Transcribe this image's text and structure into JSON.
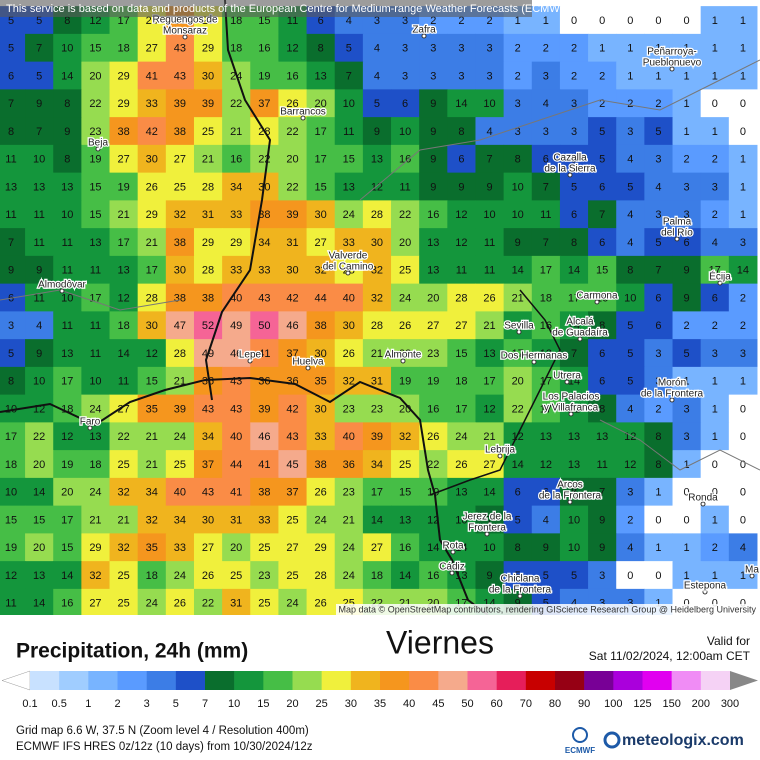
{
  "header": {
    "notice": "This service is based on data and products of the European Centre for Medium-range Weather Forecasts (ECMWF)"
  },
  "map": {
    "grid": [
      [
        5,
        5,
        8,
        12,
        17,
        25,
        38,
        29,
        18,
        15,
        11,
        6,
        4,
        3,
        3,
        2,
        2,
        2,
        1,
        1,
        0,
        0,
        0,
        0,
        0,
        1,
        1
      ],
      [
        5,
        7,
        10,
        15,
        18,
        27,
        43,
        29,
        18,
        16,
        12,
        8,
        5,
        4,
        3,
        3,
        3,
        3,
        2,
        2,
        2,
        1,
        1,
        1,
        1,
        1,
        1
      ],
      [
        6,
        5,
        14,
        20,
        29,
        41,
        43,
        30,
        24,
        19,
        16,
        13,
        7,
        4,
        3,
        3,
        3,
        3,
        2,
        3,
        2,
        2,
        1,
        1,
        1,
        1,
        1
      ],
      [
        7,
        9,
        8,
        22,
        29,
        33,
        39,
        39,
        22,
        37,
        26,
        20,
        10,
        5,
        6,
        9,
        14,
        10,
        3,
        4,
        3,
        2,
        2,
        2,
        1,
        0,
        0
      ],
      [
        8,
        7,
        9,
        23,
        38,
        42,
        38,
        25,
        21,
        28,
        22,
        17,
        11,
        9,
        10,
        9,
        8,
        4,
        3,
        3,
        3,
        5,
        3,
        5,
        1,
        1,
        0
      ],
      [
        11,
        10,
        8,
        19,
        27,
        30,
        27,
        21,
        16,
        22,
        20,
        17,
        15,
        13,
        16,
        9,
        6,
        7,
        8,
        6,
        5,
        5,
        4,
        3,
        2,
        2,
        1
      ],
      [
        13,
        13,
        13,
        15,
        19,
        26,
        25,
        28,
        34,
        30,
        22,
        15,
        13,
        12,
        11,
        9,
        9,
        9,
        10,
        7,
        5,
        6,
        5,
        4,
        3,
        3,
        1
      ],
      [
        11,
        11,
        10,
        15,
        21,
        29,
        32,
        31,
        33,
        38,
        39,
        30,
        24,
        28,
        22,
        16,
        12,
        10,
        10,
        11,
        6,
        7,
        4,
        3,
        3,
        2,
        1
      ],
      [
        7,
        11,
        11,
        13,
        17,
        21,
        38,
        29,
        29,
        34,
        31,
        27,
        33,
        30,
        20,
        13,
        12,
        11,
        9,
        7,
        8,
        6,
        4,
        5,
        6,
        4,
        3
      ],
      [
        9,
        9,
        11,
        11,
        13,
        17,
        30,
        28,
        33,
        33,
        30,
        32,
        28,
        32,
        25,
        13,
        11,
        11,
        14,
        17,
        14,
        15,
        8,
        7,
        9,
        17,
        14
      ],
      [
        6,
        11,
        10,
        17,
        12,
        28,
        38,
        38,
        40,
        43,
        42,
        44,
        40,
        32,
        24,
        20,
        28,
        26,
        21,
        18,
        17,
        16,
        10,
        6,
        9,
        6,
        2
      ],
      [
        3,
        4,
        11,
        11,
        18,
        30,
        47,
        52,
        49,
        50,
        46,
        38,
        30,
        28,
        26,
        27,
        27,
        21,
        12,
        16,
        14,
        8,
        5,
        6,
        2,
        2,
        2
      ],
      [
        5,
        9,
        13,
        11,
        14,
        12,
        28,
        49,
        46,
        41,
        37,
        30,
        26,
        21,
        23,
        23,
        15,
        13,
        17,
        12,
        7,
        6,
        5,
        3,
        5,
        3,
        3
      ],
      [
        8,
        10,
        17,
        10,
        11,
        15,
        21,
        36,
        43,
        36,
        36,
        35,
        32,
        31,
        19,
        19,
        18,
        17,
        20,
        17,
        14,
        6,
        5,
        3,
        1,
        1,
        1
      ],
      [
        10,
        12,
        18,
        24,
        27,
        35,
        39,
        43,
        43,
        39,
        42,
        30,
        23,
        23,
        20,
        16,
        17,
        12,
        22,
        17,
        12,
        8,
        4,
        2,
        3,
        1,
        0
      ],
      [
        17,
        22,
        12,
        13,
        22,
        21,
        24,
        34,
        40,
        46,
        43,
        33,
        40,
        39,
        32,
        26,
        24,
        21,
        12,
        13,
        13,
        13,
        12,
        8,
        3,
        1,
        0
      ],
      [
        18,
        20,
        19,
        18,
        25,
        21,
        25,
        37,
        44,
        41,
        45,
        38,
        36,
        34,
        25,
        22,
        26,
        27,
        14,
        12,
        13,
        11,
        12,
        8,
        1,
        0,
        0
      ],
      [
        10,
        14,
        20,
        24,
        32,
        34,
        40,
        43,
        41,
        38,
        37,
        26,
        23,
        17,
        15,
        19,
        13,
        14,
        6,
        6,
        8,
        7,
        3,
        1,
        0,
        0,
        0
      ],
      [
        15,
        15,
        17,
        21,
        21,
        32,
        34,
        30,
        31,
        33,
        25,
        24,
        21,
        14,
        13,
        12,
        10,
        7,
        5,
        4,
        10,
        9,
        2,
        0,
        0,
        1,
        0
      ],
      [
        19,
        20,
        15,
        29,
        32,
        35,
        33,
        27,
        20,
        25,
        27,
        29,
        24,
        27,
        16,
        14,
        14,
        10,
        8,
        9,
        10,
        9,
        4,
        1,
        1,
        2,
        4
      ],
      [
        12,
        13,
        14,
        32,
        25,
        18,
        24,
        26,
        25,
        23,
        25,
        28,
        24,
        18,
        14,
        16,
        13,
        9,
        5,
        5,
        5,
        3,
        0,
        0,
        1,
        1,
        1
      ],
      [
        11,
        14,
        16,
        27,
        25,
        24,
        26,
        22,
        31,
        25,
        24,
        26,
        25,
        22,
        21,
        20,
        17,
        14,
        9,
        5,
        4,
        3,
        3,
        1,
        0,
        0,
        0
      ]
    ],
    "cities": [
      [
        "Reguengos de",
        "Monsaraz"
      ],
      [
        "Zafra"
      ],
      [
        "Peñarroya-",
        "Pueblonuevo"
      ],
      [
        "Barrancos"
      ],
      [
        "Beja"
      ],
      [
        "Cazalla",
        "de la Sierra"
      ],
      [
        "Palma",
        "del Río"
      ],
      [
        "Écija"
      ],
      [
        "Valverde",
        "del Camino"
      ],
      [
        "Almodôvar"
      ],
      [
        "Carmona"
      ],
      [
        "Sevilla"
      ],
      [
        "Alcalá",
        "de Guadaíra"
      ],
      [
        "Dos Hermanas"
      ],
      [
        "Lepe"
      ],
      [
        "Huelva"
      ],
      [
        "Almonte"
      ],
      [
        "Utrera"
      ],
      [
        "Los Palacios",
        "y Villafranca"
      ],
      [
        "Morón",
        "de la Frontera"
      ],
      [
        "Faro"
      ],
      [
        "Lebrija"
      ],
      [
        "Arcos",
        "de la Frontera"
      ],
      [
        "Ronda"
      ],
      [
        "Jerez de la",
        "Frontera"
      ],
      [
        "Rota"
      ],
      [
        "Cádiz"
      ],
      [
        "Chiclana",
        "de la Frontera"
      ],
      [
        "Estepona"
      ],
      [
        "Ma"
      ]
    ],
    "attribution": "Map data © OpenStreetMap contributors, rendering GIScience Research Group @ Heidelberg University"
  },
  "legend": {
    "title": "Precipitation, 24h (mm)",
    "thresholds": [
      0.1,
      0.5,
      1,
      2,
      3,
      5,
      7,
      10,
      15,
      20,
      25,
      30,
      35,
      40,
      45,
      50,
      60,
      70,
      80,
      90,
      100,
      125,
      150,
      200,
      300
    ],
    "colors": [
      "#ffffff",
      "#c8e1ff",
      "#a0cdff",
      "#78b4ff",
      "#5a9bff",
      "#3c7de6",
      "#1e50c8",
      "#0a6e2d",
      "#14963c",
      "#46be46",
      "#96dc50",
      "#f0f03c",
      "#f0b41e",
      "#f5961e",
      "#fa8c46",
      "#f5aa8c",
      "#f56496",
      "#e61e5a",
      "#c80000",
      "#960014",
      "#780096",
      "#aa00dc",
      "#e100f0",
      "#f08cf5",
      "#f5d2f5",
      "#d2d2d2"
    ]
  },
  "footer": {
    "day": "Viernes",
    "valid_label": "Valid for",
    "valid_time": "Sat 11/02/2024, 12:00am CET",
    "grid_info": "Grid map 6.6 W, 37.5 N (Zoom level 4 / Resolution 400m)",
    "model_info": "ECMWF IFS HRES 0z/12z (10 days) from 10/30/2024/12z",
    "ecmwf": "ECMWF",
    "brand": "meteologix.com"
  }
}
